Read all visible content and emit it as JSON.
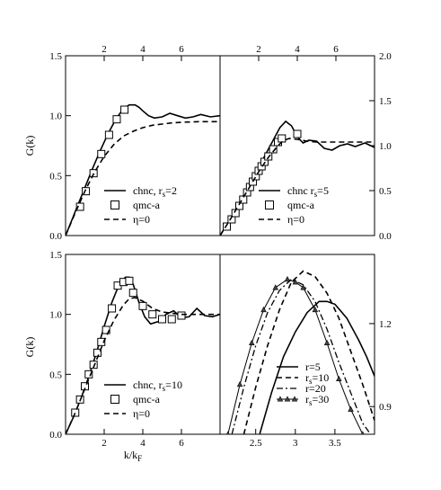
{
  "figure": {
    "ylabel_left": "G(k)",
    "xlabel_bottom_html": {
      "main": "k/k",
      "sub": "F"
    }
  },
  "chart_data": [
    {
      "id": "panel-a",
      "type": "line",
      "xlim": [
        0,
        8
      ],
      "ylim": [
        0,
        1.5
      ],
      "x_ticks_top": [
        "2",
        "4",
        "6"
      ],
      "x_tick_values_top": [
        2,
        4,
        6
      ],
      "y_ticks_left": [
        "0.0",
        "0.5",
        "1.0",
        "1.5"
      ],
      "y_tick_values_left": [
        0,
        0.5,
        1.0,
        1.5
      ],
      "ylabel": "G(k)",
      "legend_position": "bottom-right",
      "series": [
        {
          "name": "chnc, r_s=2",
          "label": {
            "main": "chnc, r",
            "sub": "s",
            "tail": "=2"
          },
          "style": "solid",
          "x": [
            0,
            0.3,
            0.6,
            1.0,
            1.4,
            1.8,
            2.2,
            2.6,
            3.0,
            3.3,
            3.6,
            3.8,
            4.0,
            4.3,
            4.6,
            5.0,
            5.4,
            5.8,
            6.2,
            6.6,
            7.0,
            7.5,
            8.0
          ],
          "y": [
            0,
            0.12,
            0.24,
            0.4,
            0.56,
            0.71,
            0.85,
            0.97,
            1.06,
            1.09,
            1.09,
            1.07,
            1.04,
            1.0,
            0.98,
            0.99,
            1.02,
            1.0,
            0.98,
            0.99,
            1.01,
            0.99,
            1.0
          ]
        },
        {
          "name": "qmc-a",
          "label": {
            "main": "qmc-a"
          },
          "style": "squares",
          "x": [
            0.75,
            1.05,
            1.45,
            1.85,
            2.25,
            2.65,
            3.05
          ],
          "y": [
            0.24,
            0.37,
            0.52,
            0.68,
            0.84,
            0.97,
            1.05
          ]
        },
        {
          "name": "η=0",
          "label": {
            "main": "η=0"
          },
          "style": "dashed",
          "x": [
            0,
            0.5,
            1.0,
            1.5,
            2.0,
            2.5,
            3.0,
            3.5,
            4.0,
            4.5,
            5.0,
            5.5,
            6.0,
            6.5,
            7.0,
            7.5,
            8.0
          ],
          "y": [
            0,
            0.19,
            0.37,
            0.53,
            0.66,
            0.76,
            0.83,
            0.87,
            0.9,
            0.92,
            0.93,
            0.94,
            0.945,
            0.948,
            0.95,
            0.95,
            0.95
          ]
        }
      ]
    },
    {
      "id": "panel-b",
      "type": "line",
      "xlim": [
        0,
        8
      ],
      "ylim": [
        0,
        2.0
      ],
      "x_ticks_top": [
        "2",
        "4",
        "6"
      ],
      "x_tick_values_top": [
        2,
        4,
        6
      ],
      "y_ticks_right": [
        "0.0",
        "0.5",
        "1.0",
        "1.5",
        "2.0"
      ],
      "y_tick_values_right": [
        0,
        0.5,
        1.0,
        1.5,
        2.0
      ],
      "legend_position": "bottom-right",
      "series": [
        {
          "name": "chnc r_s=5",
          "label": {
            "main": "chnc  r",
            "sub": "s",
            "tail": "=5"
          },
          "style": "solid",
          "x": [
            0,
            0.4,
            0.8,
            1.2,
            1.6,
            2.0,
            2.4,
            2.8,
            3.1,
            3.4,
            3.7,
            4.0,
            4.3,
            4.6,
            5.0,
            5.4,
            5.8,
            6.2,
            6.6,
            7.0,
            7.5,
            8.0
          ],
          "y": [
            0,
            0.14,
            0.28,
            0.44,
            0.6,
            0.76,
            0.92,
            1.08,
            1.2,
            1.27,
            1.22,
            1.1,
            1.03,
            1.06,
            1.05,
            0.97,
            0.95,
            1.0,
            1.02,
            0.99,
            1.03,
            0.98
          ]
        },
        {
          "name": "qmc-a",
          "label": {
            "main": "qmc-a"
          },
          "style": "squares",
          "x": [
            0.35,
            0.6,
            0.8,
            1.0,
            1.2,
            1.4,
            1.55,
            1.7,
            1.85,
            2.0,
            2.15,
            2.3,
            2.5,
            2.75,
            3.0,
            3.2,
            4.0
          ],
          "y": [
            0.1,
            0.18,
            0.25,
            0.33,
            0.4,
            0.48,
            0.54,
            0.6,
            0.66,
            0.72,
            0.77,
            0.82,
            0.88,
            0.96,
            1.04,
            1.08,
            1.13
          ]
        },
        {
          "name": "η=0",
          "label": {
            "main": "η=0"
          },
          "style": "dashed",
          "x": [
            0,
            0.5,
            1.0,
            1.5,
            2.0,
            2.5,
            3.0,
            3.3,
            3.6,
            4.0,
            4.5,
            5.0,
            5.5,
            6.0,
            6.5,
            7.0,
            7.5,
            8.0
          ],
          "y": [
            0,
            0.17,
            0.35,
            0.53,
            0.71,
            0.87,
            1.0,
            1.06,
            1.08,
            1.07,
            1.05,
            1.04,
            1.04,
            1.04,
            1.04,
            1.04,
            1.04,
            1.04
          ]
        }
      ]
    },
    {
      "id": "panel-c",
      "type": "line",
      "xlim": [
        0,
        8
      ],
      "ylim": [
        0,
        1.5
      ],
      "x_ticks_bottom": [
        "2",
        "4",
        "6"
      ],
      "x_tick_values_bottom": [
        2,
        4,
        6
      ],
      "y_ticks_left": [
        "0.0",
        "0.5",
        "1.0",
        "1.5"
      ],
      "y_tick_values_left": [
        0,
        0.5,
        1.0,
        1.5
      ],
      "ylabel": "G(k)",
      "xlabel": "k/k_F",
      "legend_position": "bottom-right",
      "series": [
        {
          "name": "chnc, r_s=10",
          "label": {
            "main": "chnc, r",
            "sub": "s",
            "tail": "=10"
          },
          "style": "solid",
          "x": [
            0,
            0.4,
            0.8,
            1.2,
            1.6,
            2.0,
            2.4,
            2.8,
            3.1,
            3.3,
            3.5,
            3.8,
            4.1,
            4.4,
            4.8,
            5.2,
            5.6,
            6.0,
            6.4,
            6.8,
            7.2,
            7.6,
            8.0
          ],
          "y": [
            0,
            0.14,
            0.3,
            0.48,
            0.68,
            0.9,
            1.1,
            1.26,
            1.31,
            1.31,
            1.25,
            1.1,
            0.98,
            0.92,
            0.94,
            1.0,
            1.03,
            0.97,
            0.98,
            1.05,
            0.99,
            0.98,
            1.0
          ]
        },
        {
          "name": "qmc-a",
          "label": {
            "main": "qmc-a"
          },
          "style": "squares",
          "x": [
            0.5,
            0.75,
            1.0,
            1.2,
            1.45,
            1.65,
            1.85,
            2.1,
            2.4,
            2.7,
            3.0,
            3.3,
            3.5,
            4.0,
            4.5,
            5.0,
            5.5,
            6.0
          ],
          "y": [
            0.18,
            0.29,
            0.4,
            0.5,
            0.58,
            0.68,
            0.77,
            0.87,
            1.05,
            1.24,
            1.27,
            1.28,
            1.18,
            1.07,
            1.0,
            0.96,
            0.96,
            0.99
          ]
        },
        {
          "name": "η=0",
          "label": {
            "main": "η=0"
          },
          "style": "dashed",
          "x": [
            0,
            0.5,
            1.0,
            1.5,
            2.0,
            2.5,
            3.0,
            3.3,
            3.6,
            4.0,
            4.5,
            5.0,
            5.5,
            6.0,
            6.5,
            7.0,
            7.5,
            8.0
          ],
          "y": [
            0,
            0.18,
            0.38,
            0.58,
            0.78,
            0.95,
            1.08,
            1.13,
            1.14,
            1.11,
            1.05,
            1.02,
            1.01,
            1.0,
            1.0,
            1.0,
            1.0,
            1.0
          ]
        }
      ]
    },
    {
      "id": "panel-d",
      "type": "line",
      "xlim": [
        2.05,
        4.0
      ],
      "ylim": [
        0.8,
        1.45
      ],
      "x_ticks_bottom": [
        "2.5",
        "3",
        "3.5"
      ],
      "x_tick_values_bottom": [
        2.5,
        3.0,
        3.5
      ],
      "y_ticks_right": [
        "0.9",
        "1.2"
      ],
      "y_tick_values_right": [
        0.9,
        1.2
      ],
      "legend_position": "bottom-right",
      "series": [
        {
          "name": "r=5",
          "label": {
            "main": "r=5"
          },
          "style": "solid",
          "x": [
            2.55,
            2.7,
            2.85,
            3.0,
            3.15,
            3.3,
            3.4,
            3.5,
            3.65,
            3.8,
            3.9,
            4.0
          ],
          "y": [
            0.8,
            0.95,
            1.08,
            1.17,
            1.24,
            1.28,
            1.28,
            1.27,
            1.22,
            1.14,
            1.08,
            1.01
          ]
        },
        {
          "name": "r_s=10",
          "label": {
            "main": "r",
            "sub": "s",
            "tail": "=10"
          },
          "style": "dashed",
          "x": [
            2.35,
            2.5,
            2.65,
            2.8,
            2.95,
            3.1,
            3.25,
            3.4,
            3.55,
            3.7,
            3.85,
            4.0
          ],
          "y": [
            0.8,
            0.97,
            1.12,
            1.25,
            1.35,
            1.39,
            1.37,
            1.31,
            1.22,
            1.1,
            0.98,
            0.85
          ]
        },
        {
          "name": "r=20",
          "label": {
            "main": "r=20"
          },
          "style": "dashdot",
          "x": [
            2.2,
            2.35,
            2.5,
            2.65,
            2.8,
            2.95,
            3.1,
            3.25,
            3.4,
            3.55,
            3.7,
            3.85,
            3.95
          ],
          "y": [
            0.8,
            0.97,
            1.12,
            1.24,
            1.32,
            1.36,
            1.34,
            1.28,
            1.18,
            1.06,
            0.95,
            0.84,
            0.8
          ]
        },
        {
          "name": "r_s=30",
          "label": {
            "main": "r",
            "sub": "s",
            "tail": "=30"
          },
          "style": "triangles",
          "x": [
            2.15,
            2.3,
            2.45,
            2.6,
            2.75,
            2.9,
            3.0,
            3.1,
            3.25,
            3.4,
            3.55,
            3.7,
            3.85,
            3.95
          ],
          "y": [
            0.8,
            0.98,
            1.13,
            1.25,
            1.33,
            1.36,
            1.35,
            1.33,
            1.25,
            1.13,
            1.0,
            0.89,
            0.8,
            0.75
          ]
        }
      ]
    }
  ]
}
